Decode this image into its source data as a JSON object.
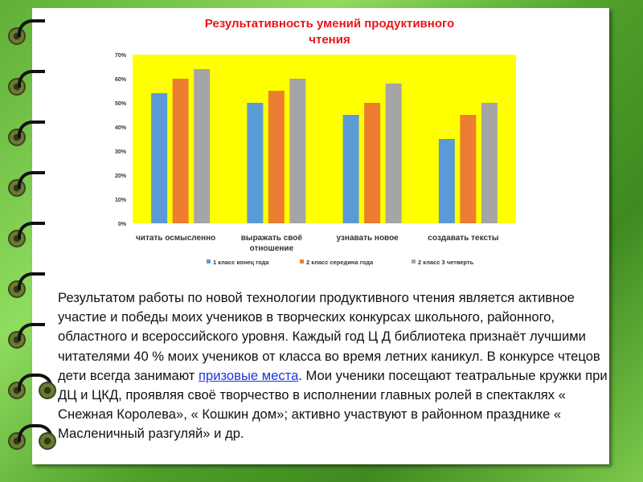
{
  "chart_data": {
    "type": "bar",
    "title": "Результативность умений  продуктивного чтения",
    "categories": [
      "читать осмысленно",
      "выражать своё отношение",
      "узнавать новое",
      "создавать тексты"
    ],
    "category_lines": [
      [
        "читать осмысленно"
      ],
      [
        "выражать своё",
        "отношение"
      ],
      [
        "узнавать новое"
      ],
      [
        "создавать тексты"
      ]
    ],
    "series": [
      {
        "name": "1 класс конец года",
        "color": "#5b9bd5",
        "values": [
          54,
          50,
          45,
          35
        ]
      },
      {
        "name": "2  класс середина года",
        "color": "#ed7d31",
        "values": [
          60,
          55,
          50,
          45
        ]
      },
      {
        "name": "2 класс 3 четверть",
        "color": "#a5a5a5",
        "values": [
          64,
          60,
          58,
          50
        ]
      }
    ],
    "y_ticks": [
      "0%",
      "10%",
      "20%",
      "30%",
      "40%",
      "50%",
      "60%",
      "70%"
    ],
    "ylim": [
      0,
      70
    ],
    "y_unit": "%",
    "plot_background": "#ffff00",
    "grid": false,
    "legend_position": "bottom"
  },
  "title_lines": [
    "Результативность умений  продуктивного",
    "чтения"
  ],
  "paragraph": {
    "before_link": "Результатом работы по новой технологии продуктивного чтения является активное участие и победы моих учеников  в творческих конкурсах школьного, районного, областного и всероссийского уровня. Каждый год Ц Д библиотека признаёт лучшими читателями  40 % моих учеников  от класса во время летних каникул. В конкурсе чтецов дети всегда занимают ",
    "link": "призовые места",
    "after_link": ". Мои ученики  посещают театральные кружки при ДЦ и ЦКД, проявляя своё творчество в исполнении главных ролей в спектаклях « Снежная Королева», « Кошкин дом»; активно участвуют в районном празднике « Масленичный разгуляй» и др."
  },
  "colors": {
    "title": "#e8141b",
    "link": "#1a36d8",
    "background": "#6fc040"
  }
}
